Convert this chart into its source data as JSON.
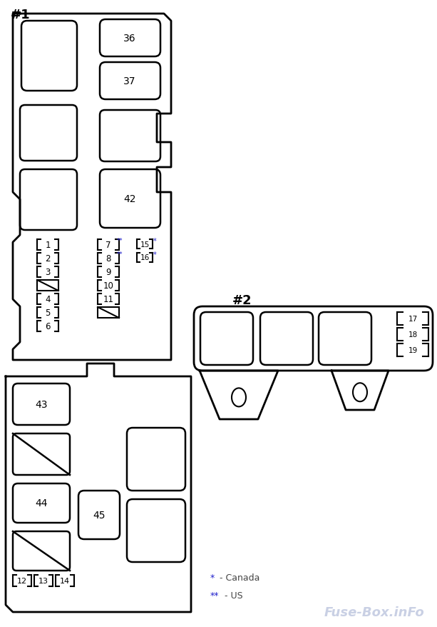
{
  "bg_color": "#ffffff",
  "line_color": "#000000",
  "label1": "#1",
  "label2": "#2",
  "watermark": "Fuse-Box.inFo",
  "note_star": "*   - Canada",
  "note_dstar": "** - US"
}
